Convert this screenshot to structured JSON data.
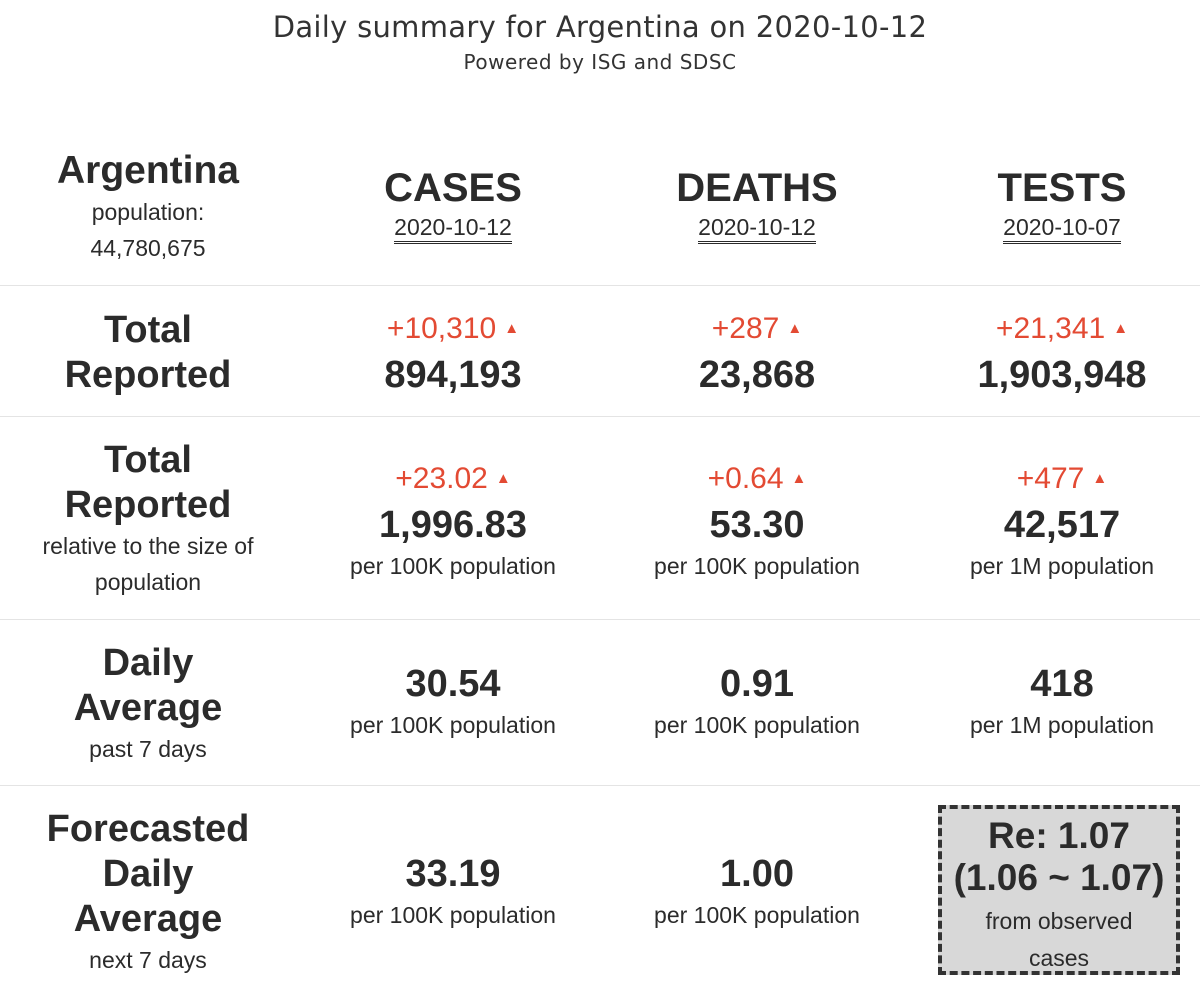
{
  "title": "Daily summary for Argentina on 2020-10-12",
  "subtitle": "Powered by ISG and SDSC",
  "country": {
    "name": "Argentina",
    "population_label": "population:",
    "population": "44,780,675"
  },
  "columns": [
    {
      "name": "CASES",
      "date": "2020-10-12"
    },
    {
      "name": "DEATHS",
      "date": "2020-10-12"
    },
    {
      "name": "TESTS",
      "date": "2020-10-07"
    }
  ],
  "rows": {
    "total": {
      "label_line1": "Total",
      "label_line2": "Reported",
      "cells": [
        {
          "delta": "+10,310",
          "value": "894,193"
        },
        {
          "delta": "+287",
          "value": "23,868"
        },
        {
          "delta": "+21,341",
          "value": "1,903,948"
        }
      ]
    },
    "relative": {
      "label_line1": "Total",
      "label_line2": "Reported",
      "sub_line1": "relative to the size of",
      "sub_line2": "population",
      "cells": [
        {
          "delta": "+23.02",
          "value": "1,996.83",
          "unit": "per 100K population"
        },
        {
          "delta": "+0.64",
          "value": "53.30",
          "unit": "per 100K population"
        },
        {
          "delta": "+477",
          "value": "42,517",
          "unit": "per 1M population"
        }
      ]
    },
    "daily": {
      "label_line1": "Daily",
      "label_line2": "Average",
      "sub": "past 7 days",
      "cells": [
        {
          "value": "30.54",
          "unit": "per 100K population"
        },
        {
          "value": "0.91",
          "unit": "per 100K population"
        },
        {
          "value": "418",
          "unit": "per 1M population"
        }
      ]
    },
    "forecast": {
      "label_line1": "Forecasted",
      "label_line2": "Daily",
      "label_line3": "Average",
      "sub": "next 7 days",
      "cells": [
        {
          "value": "33.19",
          "unit": "per 100K population"
        },
        {
          "value": "1.00",
          "unit": "per 100K population"
        }
      ],
      "re": {
        "label": "Re: 1.07",
        "interval": "(1.06 ~ 1.07)",
        "source_line1": "from observed",
        "source_line2": "cases"
      }
    }
  },
  "triangle_glyph": "▲",
  "colors": {
    "delta": "#e34a33",
    "text": "#2b2b2b",
    "re_box": "#d8d8d8"
  }
}
